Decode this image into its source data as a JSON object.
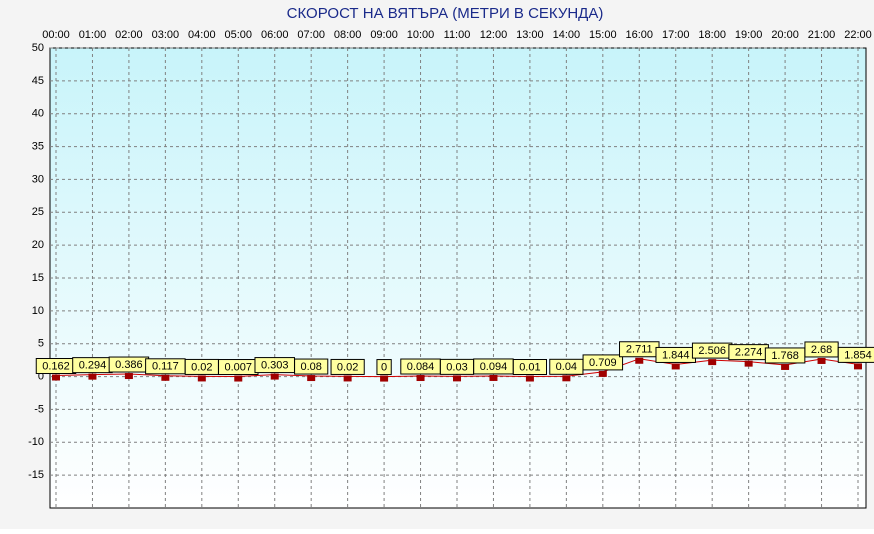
{
  "chart_data": {
    "type": "line",
    "title": "СКОРОСТ НА ВЯТЪРА (МЕТРИ В СЕКУНДА)",
    "categories": [
      "00:00",
      "01:00",
      "02:00",
      "03:00",
      "04:00",
      "05:00",
      "06:00",
      "07:00",
      "08:00",
      "09:00",
      "10:00",
      "11:00",
      "12:00",
      "13:00",
      "14:00",
      "15:00",
      "16:00",
      "17:00",
      "18:00",
      "19:00",
      "20:00",
      "21:00",
      "22:00"
    ],
    "series": [
      {
        "name": "Скорост",
        "color": "#d00000",
        "values": [
          0.162,
          0.294,
          0.386,
          0.117,
          0.02,
          0.007,
          0.303,
          0.08,
          0.02,
          0,
          0.084,
          0.03,
          0.094,
          0.01,
          0.04,
          0.709,
          2.711,
          1.844,
          2.506,
          2.274,
          1.768,
          2.68,
          1.854
        ]
      }
    ],
    "ylim": [
      -20,
      50
    ],
    "yticks": [
      -15,
      -10,
      -5,
      0,
      5,
      10,
      15,
      20,
      25,
      30,
      35,
      40,
      45,
      50
    ],
    "grid": true
  }
}
